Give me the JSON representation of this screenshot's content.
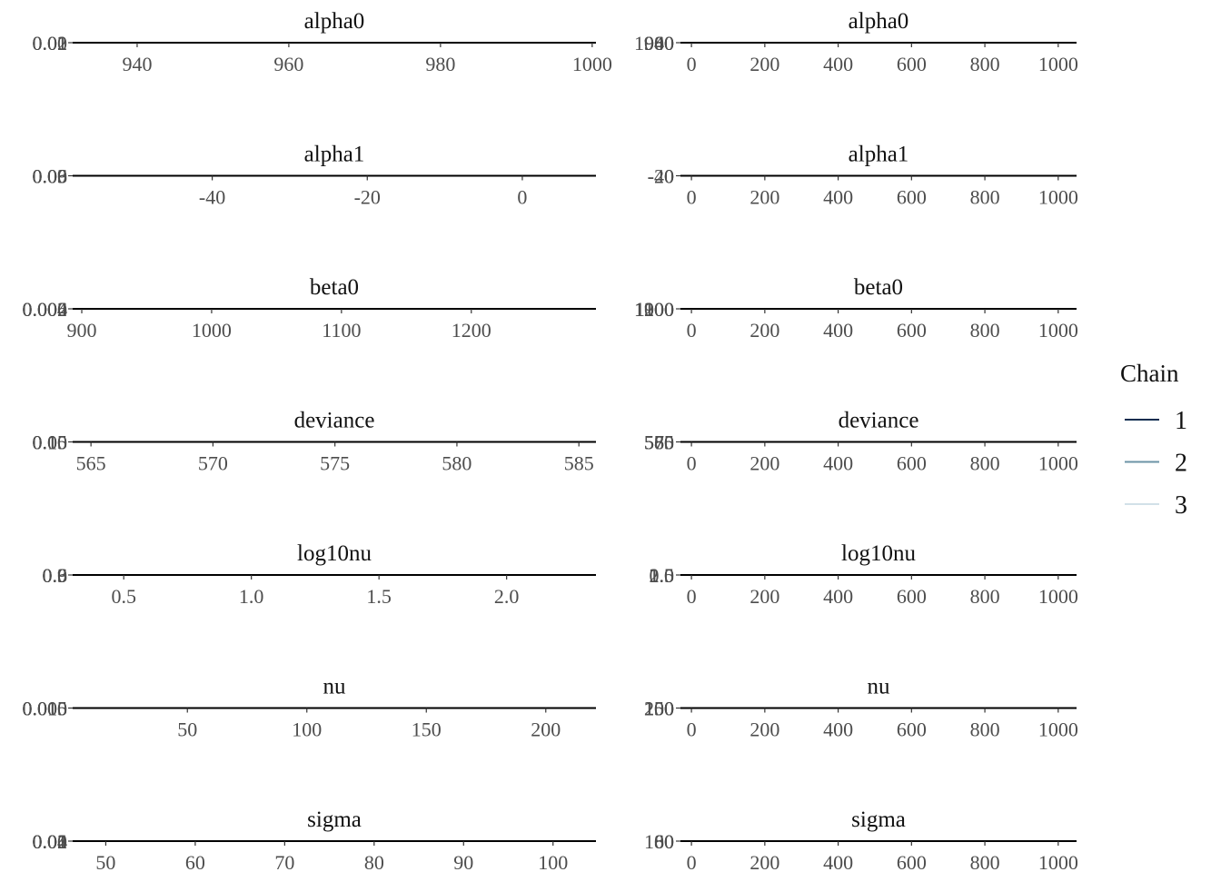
{
  "chart_data": {
    "type": "line",
    "description_style": "MCMC density and trace panels (empty/flat)",
    "legend": {
      "title": "Chain",
      "placement": "right",
      "entries": [
        {
          "label": "1",
          "color": "#0d2c4f"
        },
        {
          "label": "2",
          "color": "#6b93a6"
        },
        {
          "label": "3",
          "color": "#d2e1e8"
        }
      ]
    },
    "rows": [
      {
        "parameter": "alpha0",
        "density": {
          "title": "alpha0",
          "xlim": [
            931.5,
            1000.5
          ],
          "x_ticks": [
            "940",
            "960",
            "980",
            "1000"
          ],
          "x_tick_values": [
            940,
            960,
            980,
            1000
          ],
          "y_ticks": [
            "0.00",
            "0.01",
            "0.02"
          ]
        },
        "trace": {
          "title": "alpha0",
          "xlim": [
            -30,
            1050
          ],
          "x_ticks": [
            "0",
            "200",
            "400",
            "600",
            "800",
            "1000"
          ],
          "x_tick_values": [
            0,
            200,
            400,
            600,
            800,
            1000
          ],
          "y_ticks": [
            "940",
            "960",
            "980",
            "1000"
          ]
        }
      },
      {
        "parameter": "alpha1",
        "density": {
          "title": "alpha1",
          "xlim": [
            -58,
            9.5
          ],
          "x_ticks": [
            "-40",
            "-20",
            "0"
          ],
          "x_tick_values": [
            -40,
            -20,
            0
          ],
          "y_ticks": [
            "0.00",
            "0.03",
            "0.06",
            "0.09"
          ]
        },
        "trace": {
          "title": "alpha1",
          "xlim": [
            -30,
            1050
          ],
          "x_ticks": [
            "0",
            "200",
            "400",
            "600",
            "800",
            "1000"
          ],
          "x_tick_values": [
            0,
            200,
            400,
            600,
            800,
            1000
          ],
          "y_ticks": [
            "-40",
            "-20",
            "0"
          ]
        }
      },
      {
        "parameter": "beta0",
        "density": {
          "title": "beta0",
          "xlim": [
            893,
            1296
          ],
          "x_ticks": [
            "900",
            "1000",
            "1100",
            "1200"
          ],
          "x_tick_values": [
            900,
            1000,
            1100,
            1200
          ],
          "y_ticks": [
            "0.000",
            "0.002",
            "0.004",
            "0.006"
          ]
        },
        "trace": {
          "title": "beta0",
          "xlim": [
            -30,
            1050
          ],
          "x_ticks": [
            "0",
            "200",
            "400",
            "600",
            "800",
            "1000"
          ],
          "x_tick_values": [
            0,
            200,
            400,
            600,
            800,
            1000
          ],
          "y_ticks": [
            "900",
            "1000",
            "1100",
            "1200"
          ]
        }
      },
      {
        "parameter": "deviance",
        "density": {
          "title": "deviance",
          "xlim": [
            564.25,
            585.7
          ],
          "x_ticks": [
            "565",
            "570",
            "575",
            "580",
            "585"
          ],
          "x_tick_values": [
            565,
            570,
            575,
            580,
            585
          ],
          "y_ticks": [
            "0.00",
            "0.05",
            "0.10",
            "0.15"
          ]
        },
        "trace": {
          "title": "deviance",
          "xlim": [
            -30,
            1050
          ],
          "x_ticks": [
            "0",
            "200",
            "400",
            "600",
            "800",
            "1000"
          ],
          "x_tick_values": [
            0,
            200,
            400,
            600,
            800,
            1000
          ],
          "y_ticks": [
            "565",
            "570",
            "575",
            "580",
            "585"
          ]
        }
      },
      {
        "parameter": "log10nu",
        "density": {
          "title": "log10nu",
          "xlim": [
            0.3,
            2.35
          ],
          "x_ticks": [
            "0.5",
            "1.0",
            "1.5",
            "2.0"
          ],
          "x_tick_values": [
            0.5,
            1.0,
            1.5,
            2.0
          ],
          "y_ticks": [
            "0.0",
            "0.3",
            "0.6",
            "0.9"
          ]
        },
        "trace": {
          "title": "log10nu",
          "xlim": [
            -30,
            1050
          ],
          "x_ticks": [
            "0",
            "200",
            "400",
            "600",
            "800",
            "1000"
          ],
          "x_tick_values": [
            0,
            200,
            400,
            600,
            800,
            1000
          ],
          "y_ticks": [
            "0.5",
            "1.0",
            "1.5",
            "2.0"
          ]
        }
      },
      {
        "parameter": "nu",
        "density": {
          "title": "nu",
          "xlim": [
            2,
            221
          ],
          "x_ticks": [
            "50",
            "100",
            "150",
            "200"
          ],
          "x_tick_values": [
            50,
            100,
            150,
            200
          ],
          "y_ticks": [
            "0.000",
            "0.005",
            "0.010",
            "0.015"
          ]
        },
        "trace": {
          "title": "nu",
          "xlim": [
            -30,
            1050
          ],
          "x_ticks": [
            "0",
            "200",
            "400",
            "600",
            "800",
            "1000"
          ],
          "x_tick_values": [
            0,
            200,
            400,
            600,
            800,
            1000
          ],
          "y_ticks": [
            "50",
            "100",
            "150",
            "200",
            "250"
          ]
        }
      },
      {
        "parameter": "sigma",
        "density": {
          "title": "sigma",
          "xlim": [
            46.3,
            104.8
          ],
          "x_ticks": [
            "50",
            "60",
            "70",
            "80",
            "90",
            "100"
          ],
          "x_tick_values": [
            50,
            60,
            70,
            80,
            90,
            100
          ],
          "y_ticks": [
            "0.00",
            "0.01",
            "0.02",
            "0.03",
            "0.04"
          ]
        },
        "trace": {
          "title": "sigma",
          "xlim": [
            -30,
            1050
          ],
          "x_ticks": [
            "0",
            "200",
            "400",
            "600",
            "800",
            "1000"
          ],
          "x_tick_values": [
            0,
            200,
            400,
            600,
            800,
            1000
          ],
          "y_ticks": [
            "60",
            "80",
            "100"
          ]
        }
      }
    ]
  }
}
